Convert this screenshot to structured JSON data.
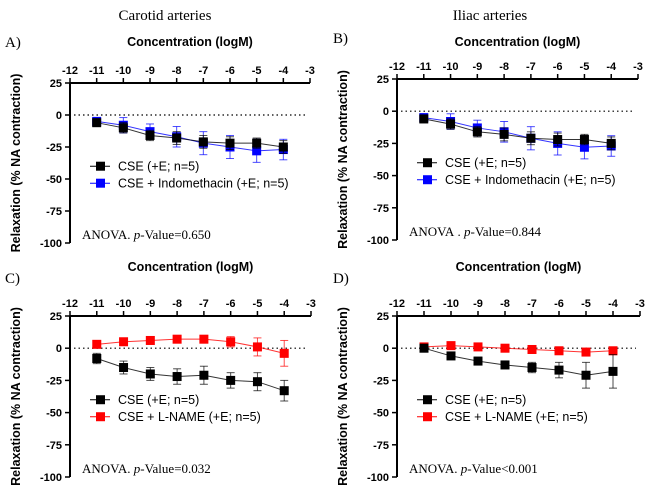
{
  "column_titles": [
    "Carotid arteries",
    "Iliac arteries"
  ],
  "chart_data": [
    {
      "type": "line",
      "panel_label": "A)",
      "xlabel": "Concentration (logM)",
      "ylabel": "Relaxation (% NA contraction)",
      "xlim": [
        -12,
        -3
      ],
      "ylim": [
        -100,
        25
      ],
      "xticks": [
        -12,
        -11,
        -10,
        -9,
        -8,
        -7,
        -6,
        -5,
        -4,
        -3
      ],
      "yticks": [
        25,
        0,
        -25,
        -50,
        -75,
        -100
      ],
      "x": [
        -11,
        -10,
        -9,
        -8,
        -7,
        -6,
        -5,
        -4
      ],
      "reference_line": 0,
      "annotation": "ANOVA. p-Value=0.650",
      "annotation_prefix": "ANOVA. ",
      "annotation_p": "p",
      "annotation_suffix": "-Value=0.650",
      "legend_position": "bottom-left",
      "series": [
        {
          "name": "CSE (+E; n=5)",
          "color": "#000000",
          "values": [
            -6,
            -10,
            -16,
            -18,
            -21,
            -22,
            -22,
            -25
          ],
          "error": [
            3,
            4,
            4,
            5,
            5,
            5,
            4,
            5
          ]
        },
        {
          "name": "CSE + Indomethacin (+E; n=5)",
          "color": "#0000ff",
          "values": [
            -5,
            -8,
            -13,
            -17,
            -22,
            -25,
            -28,
            -27
          ],
          "error": [
            3,
            6,
            6,
            8,
            9,
            9,
            9,
            8
          ]
        }
      ]
    },
    {
      "type": "line",
      "panel_label": "B)",
      "xlabel": "Concentration (logM)",
      "ylabel": "Relaxation (% NA contraction)",
      "xlim": [
        -12,
        -3
      ],
      "ylim": [
        -100,
        25
      ],
      "xticks": [
        -12,
        -11,
        -10,
        -9,
        -8,
        -7,
        -6,
        -5,
        -4,
        -3
      ],
      "yticks": [
        25,
        0,
        -25,
        -50,
        -75,
        -100
      ],
      "x": [
        -11,
        -10,
        -9,
        -8,
        -7,
        -6,
        -5,
        -4
      ],
      "reference_line": 0,
      "annotation": "ANOVA . p-Value=0.844",
      "annotation_prefix": "ANOVA . ",
      "annotation_p": "p",
      "annotation_suffix": "-Value=0.844",
      "legend_position": "bottom-left",
      "series": [
        {
          "name": "CSE (+E; n=5)",
          "color": "#000000",
          "values": [
            -6,
            -10,
            -16,
            -18,
            -21,
            -22,
            -22,
            -25
          ],
          "error": [
            3,
            4,
            4,
            5,
            5,
            5,
            4,
            5
          ]
        },
        {
          "name": "CSE + Indomethacin (+E; n=5)",
          "color": "#0000ff",
          "values": [
            -5,
            -8,
            -13,
            -16,
            -21,
            -25,
            -28,
            -27
          ],
          "error": [
            3,
            6,
            6,
            8,
            9,
            9,
            9,
            8
          ]
        }
      ]
    },
    {
      "type": "line",
      "panel_label": "C)",
      "xlabel": "Concentration (logM)",
      "ylabel": "Relaxation (% NA contraction)",
      "xlim": [
        -12,
        -3
      ],
      "ylim": [
        -100,
        25
      ],
      "xticks": [
        -12,
        -11,
        -10,
        -9,
        -8,
        -7,
        -6,
        -5,
        -4,
        -3
      ],
      "yticks": [
        25,
        0,
        -25,
        -50,
        -75,
        -100
      ],
      "x": [
        -11,
        -10,
        -9,
        -8,
        -7,
        -6,
        -5,
        -4
      ],
      "reference_line": 0,
      "annotation": "ANOVA. p-Value=0.032",
      "annotation_prefix": "ANOVA. ",
      "annotation_p": "p",
      "annotation_suffix": "-Value=0.032",
      "legend_position": "bottom-left",
      "series": [
        {
          "name": "CSE (+E; n=5)",
          "color": "#000000",
          "values": [
            -8,
            -15,
            -20,
            -22,
            -21,
            -25,
            -26,
            -33
          ],
          "error": [
            4,
            5,
            5,
            6,
            7,
            6,
            7,
            8
          ]
        },
        {
          "name": "CSE + L-NAME (+E; n=5)",
          "color": "#ff0000",
          "values": [
            3,
            5,
            6,
            7,
            7,
            5,
            1,
            -4
          ],
          "error": [
            2,
            2,
            2,
            2,
            2,
            4,
            7,
            10
          ]
        }
      ]
    },
    {
      "type": "line",
      "panel_label": "D)",
      "xlabel": "Concentration (logM)",
      "ylabel": "Relaxation (% NA contraction)",
      "xlim": [
        -12,
        -3
      ],
      "ylim": [
        -100,
        25
      ],
      "xticks": [
        -12,
        -11,
        -10,
        -9,
        -8,
        -7,
        -6,
        -5,
        -4,
        -3
      ],
      "yticks": [
        25,
        0,
        -25,
        -50,
        -75,
        -100
      ],
      "x": [
        -11,
        -10,
        -9,
        -8,
        -7,
        -6,
        -5,
        -4
      ],
      "reference_line": 0,
      "annotation": "ANOVA. p-Value<0.001",
      "annotation_prefix": "ANOVA. ",
      "annotation_p": "p",
      "annotation_suffix": "-Value<0.001",
      "legend_position": "bottom-left",
      "series": [
        {
          "name": "CSE (+E; n=5)",
          "color": "#000000",
          "values": [
            0,
            -6,
            -10,
            -13,
            -15,
            -17,
            -21,
            -18
          ],
          "error": [
            1,
            1,
            3,
            3,
            4,
            6,
            10,
            13
          ]
        },
        {
          "name": "CSE + L-NAME (+E; n=5)",
          "color": "#ff0000",
          "values": [
            1,
            2,
            1,
            0,
            -1,
            -2,
            -3,
            -2
          ],
          "error": [
            1,
            1,
            1,
            1,
            1,
            1,
            1,
            1
          ]
        }
      ]
    }
  ]
}
